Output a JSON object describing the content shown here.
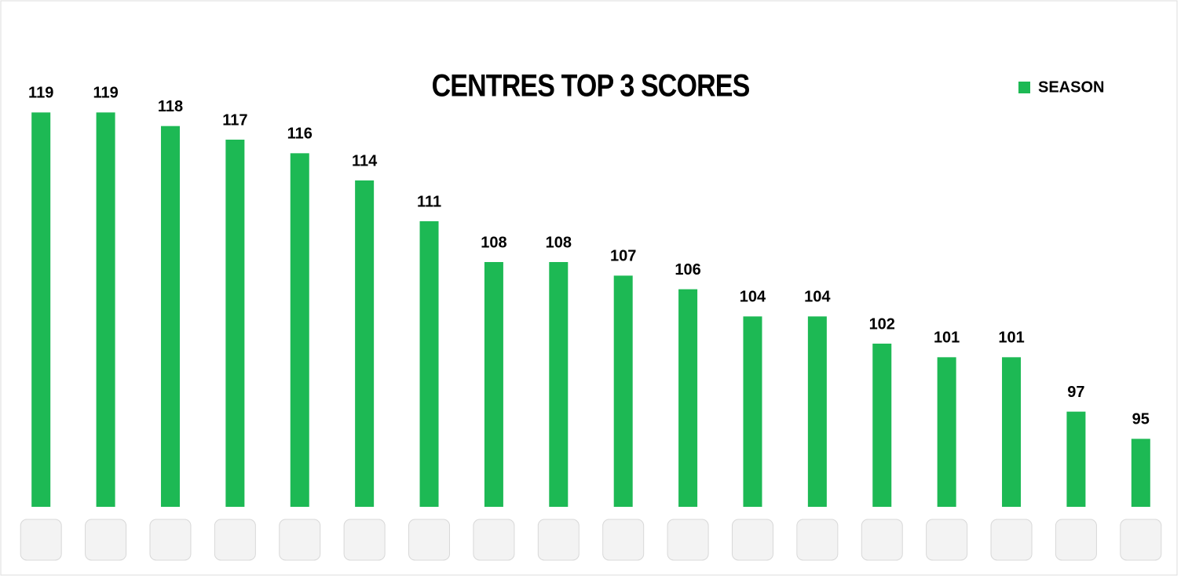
{
  "chart_data": {
    "type": "bar",
    "title": "CENTRES TOP 3 SCORES",
    "categories": [
      null,
      null,
      null,
      null,
      null,
      null,
      null,
      null,
      null,
      null,
      null,
      null,
      null,
      null,
      null,
      null,
      null,
      null
    ],
    "series": [
      {
        "name": "SEASON",
        "color": "#1db954",
        "values": [
          119,
          119,
          118,
          117,
          116,
          114,
          111,
          108,
          108,
          107,
          106,
          104,
          104,
          102,
          101,
          101,
          97,
          95
        ]
      }
    ],
    "ylim": [
      90,
      120
    ],
    "legend": "top-right"
  }
}
